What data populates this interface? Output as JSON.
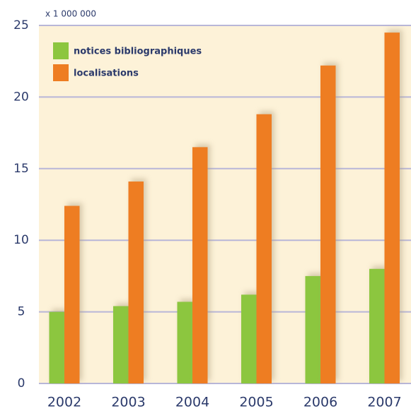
{
  "chart_data": {
    "type": "bar",
    "unit_label": "x 1 000 000",
    "categories": [
      "2002",
      "2003",
      "2004",
      "2005",
      "2006",
      "2007"
    ],
    "series": [
      {
        "name": "notices bibliographiques",
        "color": "#8cc63f",
        "values": [
          5.0,
          5.4,
          5.7,
          6.2,
          7.5,
          8.0
        ]
      },
      {
        "name": "localisations",
        "color": "#ee7d22",
        "values": [
          12.4,
          14.1,
          16.5,
          18.8,
          22.2,
          24.5
        ]
      }
    ],
    "ylim": [
      0,
      25
    ],
    "yticks": [
      0,
      5,
      10,
      15,
      20,
      25
    ],
    "grid": true,
    "legend": "upper left"
  }
}
